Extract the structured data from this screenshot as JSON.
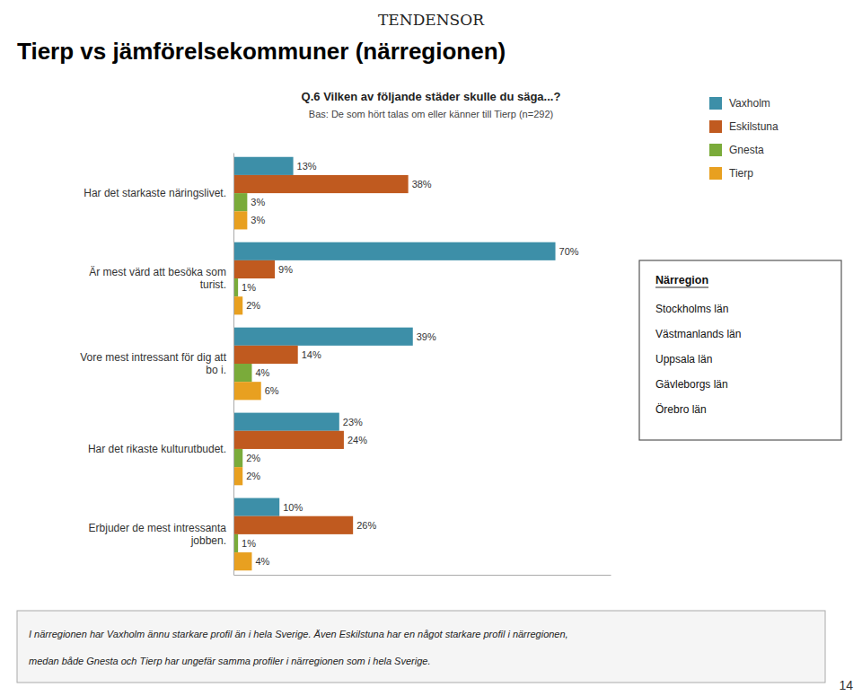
{
  "chart_data": {
    "type": "bar",
    "orientation": "horizontal",
    "title": "Tierp vs jämförelsekommuner (närregionen)",
    "subtitle": "Q.6 Vilken av följande städer skulle du säga...?",
    "annotations": [
      "TENDENSOR",
      "Bas: De som hört talas om eller känner till Tierp (n=292)",
      "Närregion",
      "Stockholms län",
      "Västmanlands län",
      "Uppsala län",
      "Gävleborgs län",
      "Örebro län",
      "I närregionen har Vaxholm ännu starkare profil än i hela Sverige. Även Eskilstuna har en något starkare profil i närregionen,",
      "medan både Gnesta och Tierp har ungefär samma profiler i närregionen som i hela Sverige.",
      "14"
    ],
    "categories": [
      "Har det starkaste näringslivet.",
      "Är mest värd att besöka som\nturist.",
      "Vore mest intressant för dig att\nbo i.",
      "Har det rikaste kulturutbudet.",
      "Erbjuder de mest intressanta\njobben."
    ],
    "series": [
      {
        "name": "Vaxholm",
        "color": "#3d8fa8",
        "values": [
          13,
          70,
          39,
          23,
          10
        ],
        "value_labels": [
          "13%",
          "70%",
          "39%",
          "23%",
          "10%"
        ]
      },
      {
        "name": "Eskilstuna",
        "color": "#c05a1f",
        "values": [
          38,
          9,
          14,
          24,
          26
        ],
        "value_labels": [
          "38%",
          "9%",
          "14%",
          "24%",
          "26%"
        ]
      },
      {
        "name": "Gnesta",
        "color": "#7aab3a",
        "values": [
          3,
          1,
          4,
          2,
          1
        ],
        "value_labels": [
          "3%",
          "1%",
          "4%",
          "2%",
          "1%"
        ]
      },
      {
        "name": "Tierp",
        "color": "#e8a020",
        "values": [
          3,
          2,
          6,
          2,
          4
        ],
        "value_labels": [
          "3%",
          "2%",
          "6%",
          "2%",
          "4%"
        ]
      }
    ],
    "xlim": [
      0,
      82
    ],
    "tick_labels": "y",
    "data_labels": true,
    "legend": "right",
    "grid": false
  }
}
